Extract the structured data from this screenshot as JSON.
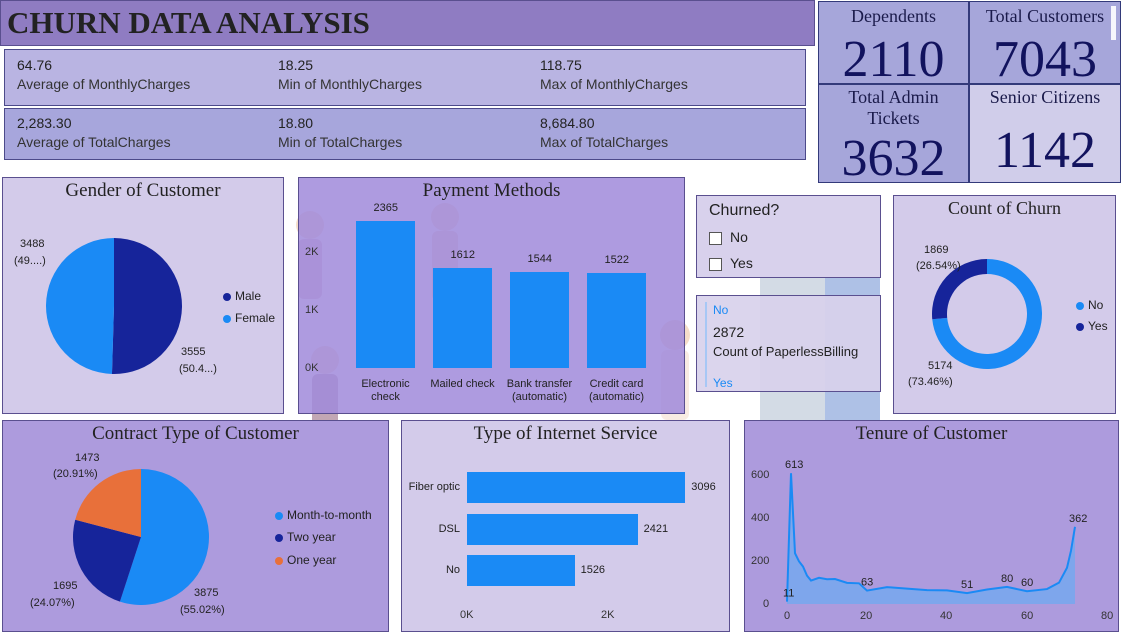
{
  "title": "CHURN DATA ANALYSIS",
  "stats_row1": [
    {
      "value": "64.76",
      "label": "Average of MonthlyCharges"
    },
    {
      "value": "18.25",
      "label": "Min of MonthlyCharges"
    },
    {
      "value": "118.75",
      "label": "Max of MonthlyCharges"
    }
  ],
  "stats_row2": [
    {
      "value": "2,283.30",
      "label": "Average of TotalCharges"
    },
    {
      "value": "18.80",
      "label": "Min of TotalCharges"
    },
    {
      "value": "8,684.80",
      "label": "Max of TotalCharges"
    }
  ],
  "kpis": {
    "dependents": {
      "title": "Dependents",
      "value": "2110"
    },
    "total_customers": {
      "title": "Total Customers",
      "value": "7043"
    },
    "admin_tickets": {
      "title_line1": "Total Admin",
      "title_line2": "Tickets",
      "value": "3632"
    },
    "senior_citizens": {
      "title": "Senior Citizens",
      "value": "1142"
    }
  },
  "gender": {
    "title": "Gender of Customer",
    "female_label_line1": "3488",
    "female_label_line2": "(49....)",
    "male_label_line1": "3555",
    "male_label_line2": "(50.4...)",
    "legend": [
      "Male",
      "Female"
    ]
  },
  "payment": {
    "title": "Payment Methods",
    "y_ticks": [
      "2K",
      "1K",
      "0K"
    ]
  },
  "churn_filter": {
    "title": "Churned?",
    "options": [
      "No",
      "Yes"
    ]
  },
  "paperless": {
    "top_label": "No",
    "value": "2872",
    "label": "Count of PaperlessBilling",
    "bottom_label": "Yes"
  },
  "count_churn": {
    "title": "Count of Churn",
    "yes_label_line1": "1869",
    "yes_label_line2": "(26.54%)",
    "no_label_line1": "5174",
    "no_label_line2": "(73.46%)",
    "legend": [
      "No",
      "Yes"
    ]
  },
  "contract": {
    "title": "Contract Type of Customer",
    "one_year_line1": "1473",
    "one_year_line2": "(20.91%)",
    "two_year_line1": "1695",
    "two_year_line2": "(24.07%)",
    "month_line1": "3875",
    "month_line2": "(55.02%)",
    "legend": [
      "Month-to-month",
      "Two year",
      "One year"
    ]
  },
  "internet": {
    "title": "Type of Internet Service",
    "x_ticks": [
      "0K",
      "2K"
    ]
  },
  "tenure": {
    "title": "Tenure of Customer",
    "y_ticks": [
      "600",
      "400",
      "200",
      "0"
    ],
    "x_ticks": [
      "0",
      "20",
      "40",
      "60",
      "80"
    ]
  },
  "chart_data": [
    {
      "type": "pie",
      "title": "Gender of Customer",
      "categories": [
        "Male",
        "Female"
      ],
      "values": [
        3555,
        3488
      ],
      "colors": [
        "#16249a",
        "#1a8af5"
      ]
    },
    {
      "type": "bar",
      "title": "Payment Methods",
      "categories": [
        "Electronic check",
        "Mailed check",
        "Bank transfer (automatic)",
        "Credit card (automatic)"
      ],
      "values": [
        2365,
        1612,
        1544,
        1522
      ],
      "ylim": [
        0,
        2600
      ],
      "color": "#1a8af5"
    },
    {
      "type": "pie",
      "title": "Count of Churn",
      "categories": [
        "No",
        "Yes"
      ],
      "values": [
        5174,
        1869
      ],
      "colors": [
        "#1a8af5",
        "#16249a"
      ]
    },
    {
      "type": "pie",
      "title": "Contract Type of Customer",
      "categories": [
        "Month-to-month",
        "Two year",
        "One year"
      ],
      "values": [
        3875,
        1695,
        1473
      ],
      "colors": [
        "#1a8af5",
        "#16249a",
        "#e8703a"
      ]
    },
    {
      "type": "bar",
      "title": "Type of Internet Service",
      "categories": [
        "Fiber optic",
        "DSL",
        "No"
      ],
      "values": [
        3096,
        2421,
        1526
      ],
      "xlim": [
        0,
        4100
      ],
      "color": "#1a8af5"
    },
    {
      "type": "area",
      "title": "Tenure of Customer",
      "x": [
        0,
        1,
        2,
        3,
        4,
        5,
        6,
        8,
        10,
        12,
        15,
        18,
        20,
        25,
        30,
        35,
        40,
        45,
        50,
        55,
        60,
        65,
        68,
        70,
        71,
        72
      ],
      "y": [
        11,
        613,
        238,
        200,
        176,
        133,
        110,
        123,
        116,
        117,
        99,
        97,
        63,
        79,
        72,
        65,
        64,
        51,
        68,
        80,
        60,
        70,
        100,
        170,
        250,
        362
      ],
      "xlim": [
        0,
        80
      ],
      "ylim": [
        0,
        650
      ],
      "labeled_points": [
        {
          "x": 0,
          "y": 11,
          "text": "11"
        },
        {
          "x": 1,
          "y": 613,
          "text": "613"
        },
        {
          "x": 20,
          "y": 63,
          "text": "63"
        },
        {
          "x": 45,
          "y": 51,
          "text": "51"
        },
        {
          "x": 55,
          "y": 80,
          "text": "80"
        },
        {
          "x": 60,
          "y": 60,
          "text": "60"
        },
        {
          "x": 72,
          "y": 362,
          "text": "362"
        }
      ],
      "color": "#1a8af5"
    }
  ]
}
